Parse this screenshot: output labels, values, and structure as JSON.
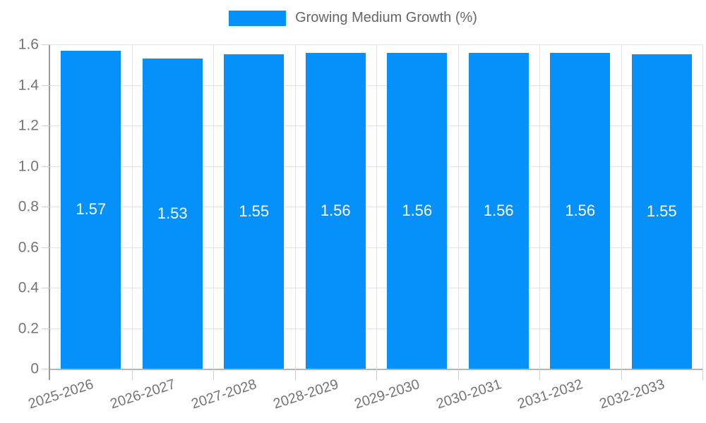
{
  "chart_data": {
    "type": "bar",
    "title": "",
    "xlabel": "",
    "ylabel": "",
    "legend": {
      "label": "Growing Medium Growth (%)",
      "position": "top"
    },
    "categories": [
      "2025-2026",
      "2026-2027",
      "2027-2028",
      "2028-2029",
      "2029-2030",
      "2030-2031",
      "2031-2032",
      "2032-2033"
    ],
    "series": [
      {
        "name": "Growing Medium Growth (%)",
        "values": [
          1.57,
          1.53,
          1.55,
          1.56,
          1.56,
          1.56,
          1.56,
          1.55
        ]
      }
    ],
    "bar_value_labels": [
      "1.57",
      "1.53",
      "1.55",
      "1.56",
      "1.56",
      "1.56",
      "1.56",
      "1.55"
    ],
    "ylim": [
      0,
      1.6
    ],
    "ytick_step": 0.2,
    "ytick_labels": [
      "0",
      "0.2",
      "0.4",
      "0.6",
      "0.8",
      "1.0",
      "1.2",
      "1.4",
      "1.6"
    ],
    "grid": true,
    "x_label_rotation_deg": -18,
    "colors": {
      "bar": "#0690fa",
      "grid": "#e3e3e3",
      "axis": "#9b9b9b",
      "tick_text": "#757575",
      "legend_text": "#666666",
      "value_label_text": "#ffffff",
      "background": "#ffffff"
    }
  }
}
